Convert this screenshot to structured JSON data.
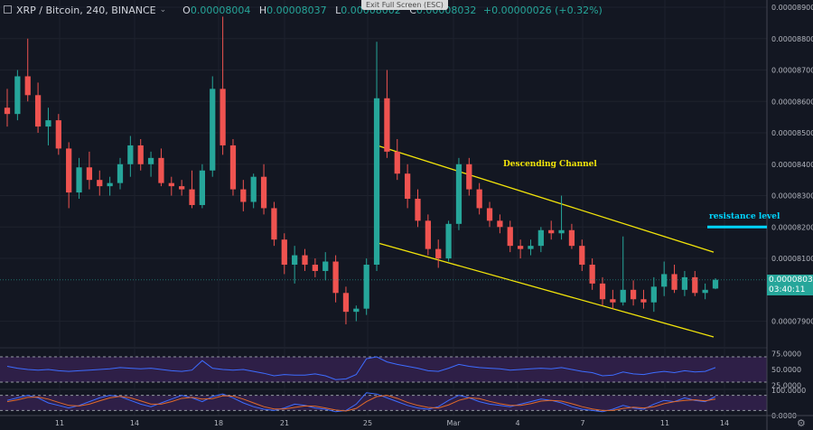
{
  "header": {
    "symbol": "XRP / Bitcoin, 240, BINANCE",
    "open_label": "O",
    "open": "0.00008004",
    "high_label": "H",
    "high": "0.00008037",
    "low_label": "L",
    "low": "0.00008002",
    "close_label": "C",
    "close": "0.00008032",
    "change": "+0.00000026 (+0.32%)"
  },
  "exit_fullscreen": "Exit Full Screen (ESC)",
  "current_price_tag": "0.00008032",
  "countdown_tag": "03:40:11",
  "colors": {
    "background": "#131722",
    "up": "#26a69a",
    "down": "#ef5350",
    "channel": "#f2e40a",
    "resistance": "#00d5ff",
    "rsi_line": "#3d6cff",
    "stoch_k": "#3d6cff",
    "stoch_d": "#e06a2a",
    "indicator_band": "#2e1f47"
  },
  "icons": [
    "chevron-down-icon",
    "gear-icon"
  ],
  "chart_data": [
    {
      "type": "candlestick",
      "y_ticks": [
        "0.00008900",
        "0.00008800",
        "0.00008700",
        "0.00008600",
        "0.00008500",
        "0.00008400",
        "0.00008300",
        "0.00008200",
        "0.00008100",
        "0.00007900"
      ],
      "ylim": [
        7.87e-05,
        8.9e-05
      ],
      "x_tick_labels": [
        "11",
        "14",
        "18",
        "21",
        "25",
        "Mar",
        "4",
        "7",
        "11",
        "14"
      ],
      "candles": [
        [
          8.58e-05,
          8.64e-05,
          8.52e-05,
          8.56e-05
        ],
        [
          8.56e-05,
          8.7e-05,
          8.54e-05,
          8.68e-05
        ],
        [
          8.68e-05,
          8.8e-05,
          8.6e-05,
          8.62e-05
        ],
        [
          8.62e-05,
          8.66e-05,
          8.5e-05,
          8.52e-05
        ],
        [
          8.52e-05,
          8.58e-05,
          8.46e-05,
          8.54e-05
        ],
        [
          8.54e-05,
          8.56e-05,
          8.43e-05,
          8.45e-05
        ],
        [
          8.45e-05,
          8.47e-05,
          8.26e-05,
          8.31e-05
        ],
        [
          8.31e-05,
          8.42e-05,
          8.29e-05,
          8.39e-05
        ],
        [
          8.39e-05,
          8.44e-05,
          8.32e-05,
          8.35e-05
        ],
        [
          8.35e-05,
          8.38e-05,
          8.3e-05,
          8.33e-05
        ],
        [
          8.33e-05,
          8.36e-05,
          8.3e-05,
          8.34e-05
        ],
        [
          8.34e-05,
          8.42e-05,
          8.32e-05,
          8.4e-05
        ],
        [
          8.4e-05,
          8.49e-05,
          8.36e-05,
          8.46e-05
        ],
        [
          8.46e-05,
          8.48e-05,
          8.38e-05,
          8.4e-05
        ],
        [
          8.4e-05,
          8.44e-05,
          8.36e-05,
          8.42e-05
        ],
        [
          8.42e-05,
          8.45e-05,
          8.33e-05,
          8.34e-05
        ],
        [
          8.34e-05,
          8.36e-05,
          8.3e-05,
          8.33e-05
        ],
        [
          8.33e-05,
          8.35e-05,
          8.3e-05,
          8.32e-05
        ],
        [
          8.32e-05,
          8.38e-05,
          8.26e-05,
          8.27e-05
        ],
        [
          8.27e-05,
          8.4e-05,
          8.26e-05,
          8.38e-05
        ],
        [
          8.38e-05,
          8.68e-05,
          8.36e-05,
          8.64e-05
        ],
        [
          8.64e-05,
          8.87e-05,
          8.43e-05,
          8.46e-05
        ],
        [
          8.46e-05,
          8.48e-05,
          8.3e-05,
          8.32e-05
        ],
        [
          8.32e-05,
          8.35e-05,
          8.25e-05,
          8.28e-05
        ],
        [
          8.28e-05,
          8.37e-05,
          8.26e-05,
          8.36e-05
        ],
        [
          8.36e-05,
          8.4e-05,
          8.24e-05,
          8.26e-05
        ],
        [
          8.26e-05,
          8.28e-05,
          8.14e-05,
          8.16e-05
        ],
        [
          8.16e-05,
          8.18e-05,
          8.05e-05,
          8.08e-05
        ],
        [
          8.08e-05,
          8.14e-05,
          8.02e-05,
          8.11e-05
        ],
        [
          8.11e-05,
          8.13e-05,
          8.06e-05,
          8.08e-05
        ],
        [
          8.08e-05,
          8.1e-05,
          8.04e-05,
          8.06e-05
        ],
        [
          8.06e-05,
          8.12e-05,
          8.03e-05,
          8.09e-05
        ],
        [
          8.09e-05,
          8.11e-05,
          7.96e-05,
          7.99e-05
        ],
        [
          7.99e-05,
          8.01e-05,
          7.89e-05,
          7.93e-05
        ],
        [
          7.93e-05,
          7.95e-05,
          7.9e-05,
          7.94e-05
        ],
        [
          7.94e-05,
          8.1e-05,
          7.92e-05,
          8.08e-05
        ],
        [
          8.08e-05,
          8.79e-05,
          8.06e-05,
          8.61e-05
        ],
        [
          8.61e-05,
          8.7e-05,
          8.42e-05,
          8.44e-05
        ],
        [
          8.44e-05,
          8.48e-05,
          8.35e-05,
          8.37e-05
        ],
        [
          8.37e-05,
          8.4e-05,
          8.26e-05,
          8.29e-05
        ],
        [
          8.29e-05,
          8.32e-05,
          8.2e-05,
          8.22e-05
        ],
        [
          8.22e-05,
          8.24e-05,
          8.11e-05,
          8.13e-05
        ],
        [
          8.13e-05,
          8.16e-05,
          8.07e-05,
          8.1e-05
        ],
        [
          8.1e-05,
          8.22e-05,
          8.09e-05,
          8.21e-05
        ],
        [
          8.21e-05,
          8.42e-05,
          8.19e-05,
          8.4e-05
        ],
        [
          8.4e-05,
          8.42e-05,
          8.3e-05,
          8.32e-05
        ],
        [
          8.32e-05,
          8.34e-05,
          8.24e-05,
          8.26e-05
        ],
        [
          8.26e-05,
          8.28e-05,
          8.2e-05,
          8.22e-05
        ],
        [
          8.22e-05,
          8.24e-05,
          8.18e-05,
          8.2e-05
        ],
        [
          8.2e-05,
          8.22e-05,
          8.12e-05,
          8.14e-05
        ],
        [
          8.14e-05,
          8.16e-05,
          8.1e-05,
          8.13e-05
        ],
        [
          8.13e-05,
          8.16e-05,
          8.11e-05,
          8.14e-05
        ],
        [
          8.14e-05,
          8.2e-05,
          8.12e-05,
          8.19e-05
        ],
        [
          8.19e-05,
          8.22e-05,
          8.16e-05,
          8.18e-05
        ],
        [
          8.18e-05,
          8.3e-05,
          8.16e-05,
          8.19e-05
        ],
        [
          8.19e-05,
          8.21e-05,
          8.13e-05,
          8.14e-05
        ],
        [
          8.14e-05,
          8.16e-05,
          8.06e-05,
          8.08e-05
        ],
        [
          8.08e-05,
          8.1e-05,
          8e-05,
          8.02e-05
        ],
        [
          8.02e-05,
          8.04e-05,
          7.95e-05,
          7.97e-05
        ],
        [
          7.97e-05,
          8e-05,
          7.94e-05,
          7.96e-05
        ],
        [
          7.96e-05,
          8.17e-05,
          7.95e-05,
          8e-05
        ],
        [
          8e-05,
          8.03e-05,
          7.95e-05,
          7.97e-05
        ],
        [
          7.97e-05,
          8e-05,
          7.94e-05,
          7.96e-05
        ],
        [
          7.96e-05,
          8.04e-05,
          7.93e-05,
          8.01e-05
        ],
        [
          8.01e-05,
          8.09e-05,
          7.98e-05,
          8.05e-05
        ],
        [
          8.05e-05,
          8.08e-05,
          7.99e-05,
          8e-05
        ],
        [
          8e-05,
          8.06e-05,
          7.98e-05,
          8.04e-05
        ],
        [
          8.04e-05,
          8.06e-05,
          7.98e-05,
          7.99e-05
        ],
        [
          7.99e-05,
          8.02e-05,
          7.97e-05,
          8e-05
        ],
        [
          8.004e-05,
          8.037e-05,
          8.002e-05,
          8.032e-05
        ]
      ],
      "annotations": [
        {
          "text": "Descending Channel"
        },
        {
          "text": "resistance level",
          "price": 8.2e-05
        }
      ],
      "channel": {
        "upper": {
          "from": [
            25.3,
            8.46e-05
          ],
          "to": [
            13.6,
            8.12e-05
          ]
        },
        "lower": {
          "from": [
            25.3,
            8.15e-05
          ],
          "to": [
            13.6,
            7.85e-05
          ]
        }
      }
    },
    {
      "type": "line",
      "indicator": "RSI",
      "y_ticks": [
        "75.0000",
        "50.0000",
        "25.0000"
      ],
      "ylim": [
        20,
        80
      ],
      "bands": [
        30,
        70
      ],
      "values": [
        55,
        52,
        50,
        49,
        50,
        48,
        47,
        48,
        49,
        50,
        51,
        53,
        52,
        51,
        52,
        50,
        48,
        47,
        49,
        64,
        52,
        50,
        49,
        50,
        47,
        44,
        40,
        42,
        41,
        41,
        43,
        40,
        34,
        35,
        42,
        67,
        70,
        62,
        58,
        55,
        52,
        48,
        47,
        52,
        58,
        55,
        53,
        52,
        51,
        49,
        50,
        51,
        52,
        51,
        53,
        50,
        47,
        45,
        40,
        41,
        46,
        43,
        42,
        45,
        47,
        45,
        48,
        46,
        47,
        53
      ]
    },
    {
      "type": "line",
      "indicator": "Stochastic RSI",
      "y_ticks": [
        "100.0000",
        "0.0000"
      ],
      "ylim": [
        0,
        100
      ],
      "bands": [
        20,
        80
      ],
      "series": [
        {
          "values": [
            60,
            70,
            80,
            70,
            50,
            40,
            30,
            40,
            55,
            70,
            80,
            75,
            60,
            45,
            35,
            50,
            65,
            80,
            70,
            55,
            75,
            85,
            70,
            50,
            35,
            25,
            20,
            30,
            45,
            40,
            30,
            25,
            15,
            20,
            45,
            90,
            85,
            70,
            55,
            40,
            30,
            25,
            35,
            60,
            80,
            70,
            55,
            45,
            40,
            35,
            45,
            55,
            65,
            60,
            50,
            35,
            25,
            20,
            15,
            25,
            40,
            30,
            25,
            45,
            60,
            55,
            70,
            60,
            55,
            75
          ]
        },
        {
          "values": [
            55,
            62,
            72,
            73,
            65,
            52,
            40,
            38,
            45,
            58,
            70,
            76,
            70,
            58,
            45,
            45,
            55,
            68,
            72,
            65,
            67,
            78,
            77,
            65,
            50,
            35,
            26,
            26,
            32,
            38,
            37,
            30,
            22,
            18,
            28,
            55,
            75,
            80,
            68,
            52,
            40,
            32,
            30,
            42,
            60,
            70,
            67,
            56,
            47,
            40,
            40,
            47,
            57,
            60,
            57,
            47,
            35,
            26,
            20,
            20,
            28,
            33,
            30,
            35,
            47,
            55,
            60,
            62,
            58,
            65
          ]
        }
      ]
    }
  ]
}
